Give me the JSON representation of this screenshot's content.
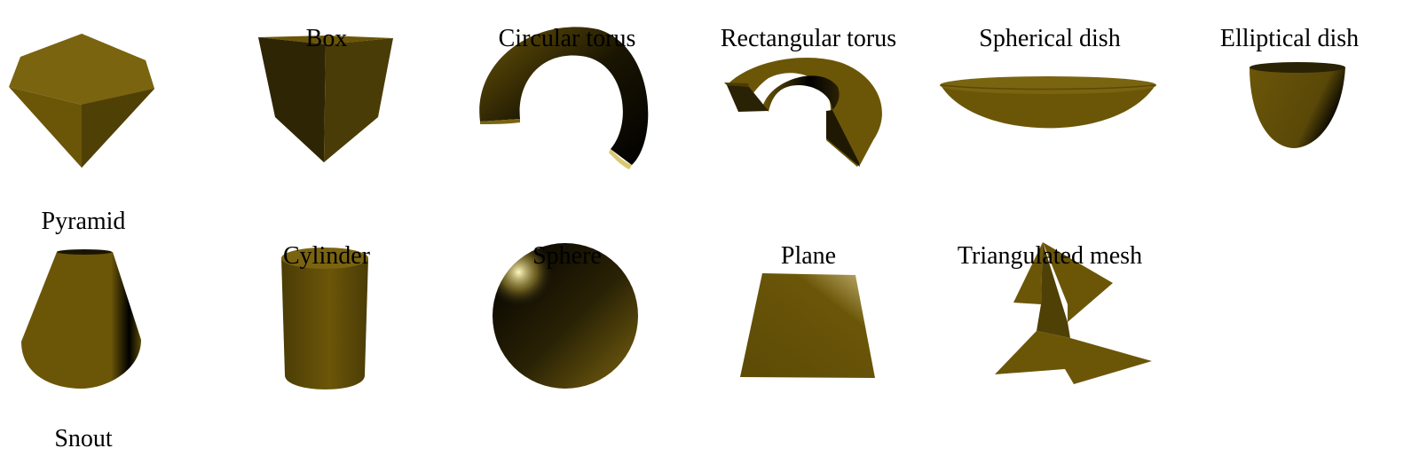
{
  "shapes": {
    "pyramid": "Pyramid",
    "box": "Box",
    "circular_torus": "Circular torus",
    "rectangular_torus": "Rectangular torus",
    "spherical_dish": "Spherical dish",
    "elliptical_dish": "Elliptical dish",
    "snout": "Snout",
    "cylinder": "Cylinder",
    "sphere": "Sphere",
    "plane": "Plane",
    "triangulated_mesh": "Triangulated mesh"
  },
  "colors": {
    "base": "#6b5608",
    "light": "#7a6410",
    "dark": "#2a2205",
    "highlight": "#fff3a0"
  }
}
